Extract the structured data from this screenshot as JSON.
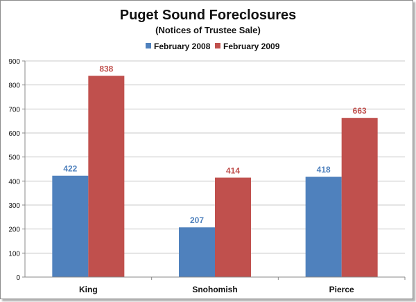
{
  "colors": {
    "series_2008": "#4f81bd",
    "series_2009": "#c0504d",
    "axis": "#888888",
    "grid": "#c8c8c8"
  },
  "chart_data": {
    "type": "bar",
    "title": "Puget Sound Foreclosures",
    "subtitle": "(Notices of Trustee Sale)",
    "categories": [
      "King",
      "Snohomish",
      "Pierce"
    ],
    "series": [
      {
        "name": "February 2008",
        "values": [
          422,
          207,
          418
        ]
      },
      {
        "name": "February 2009",
        "values": [
          838,
          414,
          663
        ]
      }
    ],
    "ylim": [
      0,
      900
    ],
    "yticks": [
      "0",
      "100",
      "200",
      "300",
      "400",
      "500",
      "600",
      "700",
      "800",
      "900"
    ],
    "grid": true,
    "legend": "top-center",
    "data_labels": true
  }
}
